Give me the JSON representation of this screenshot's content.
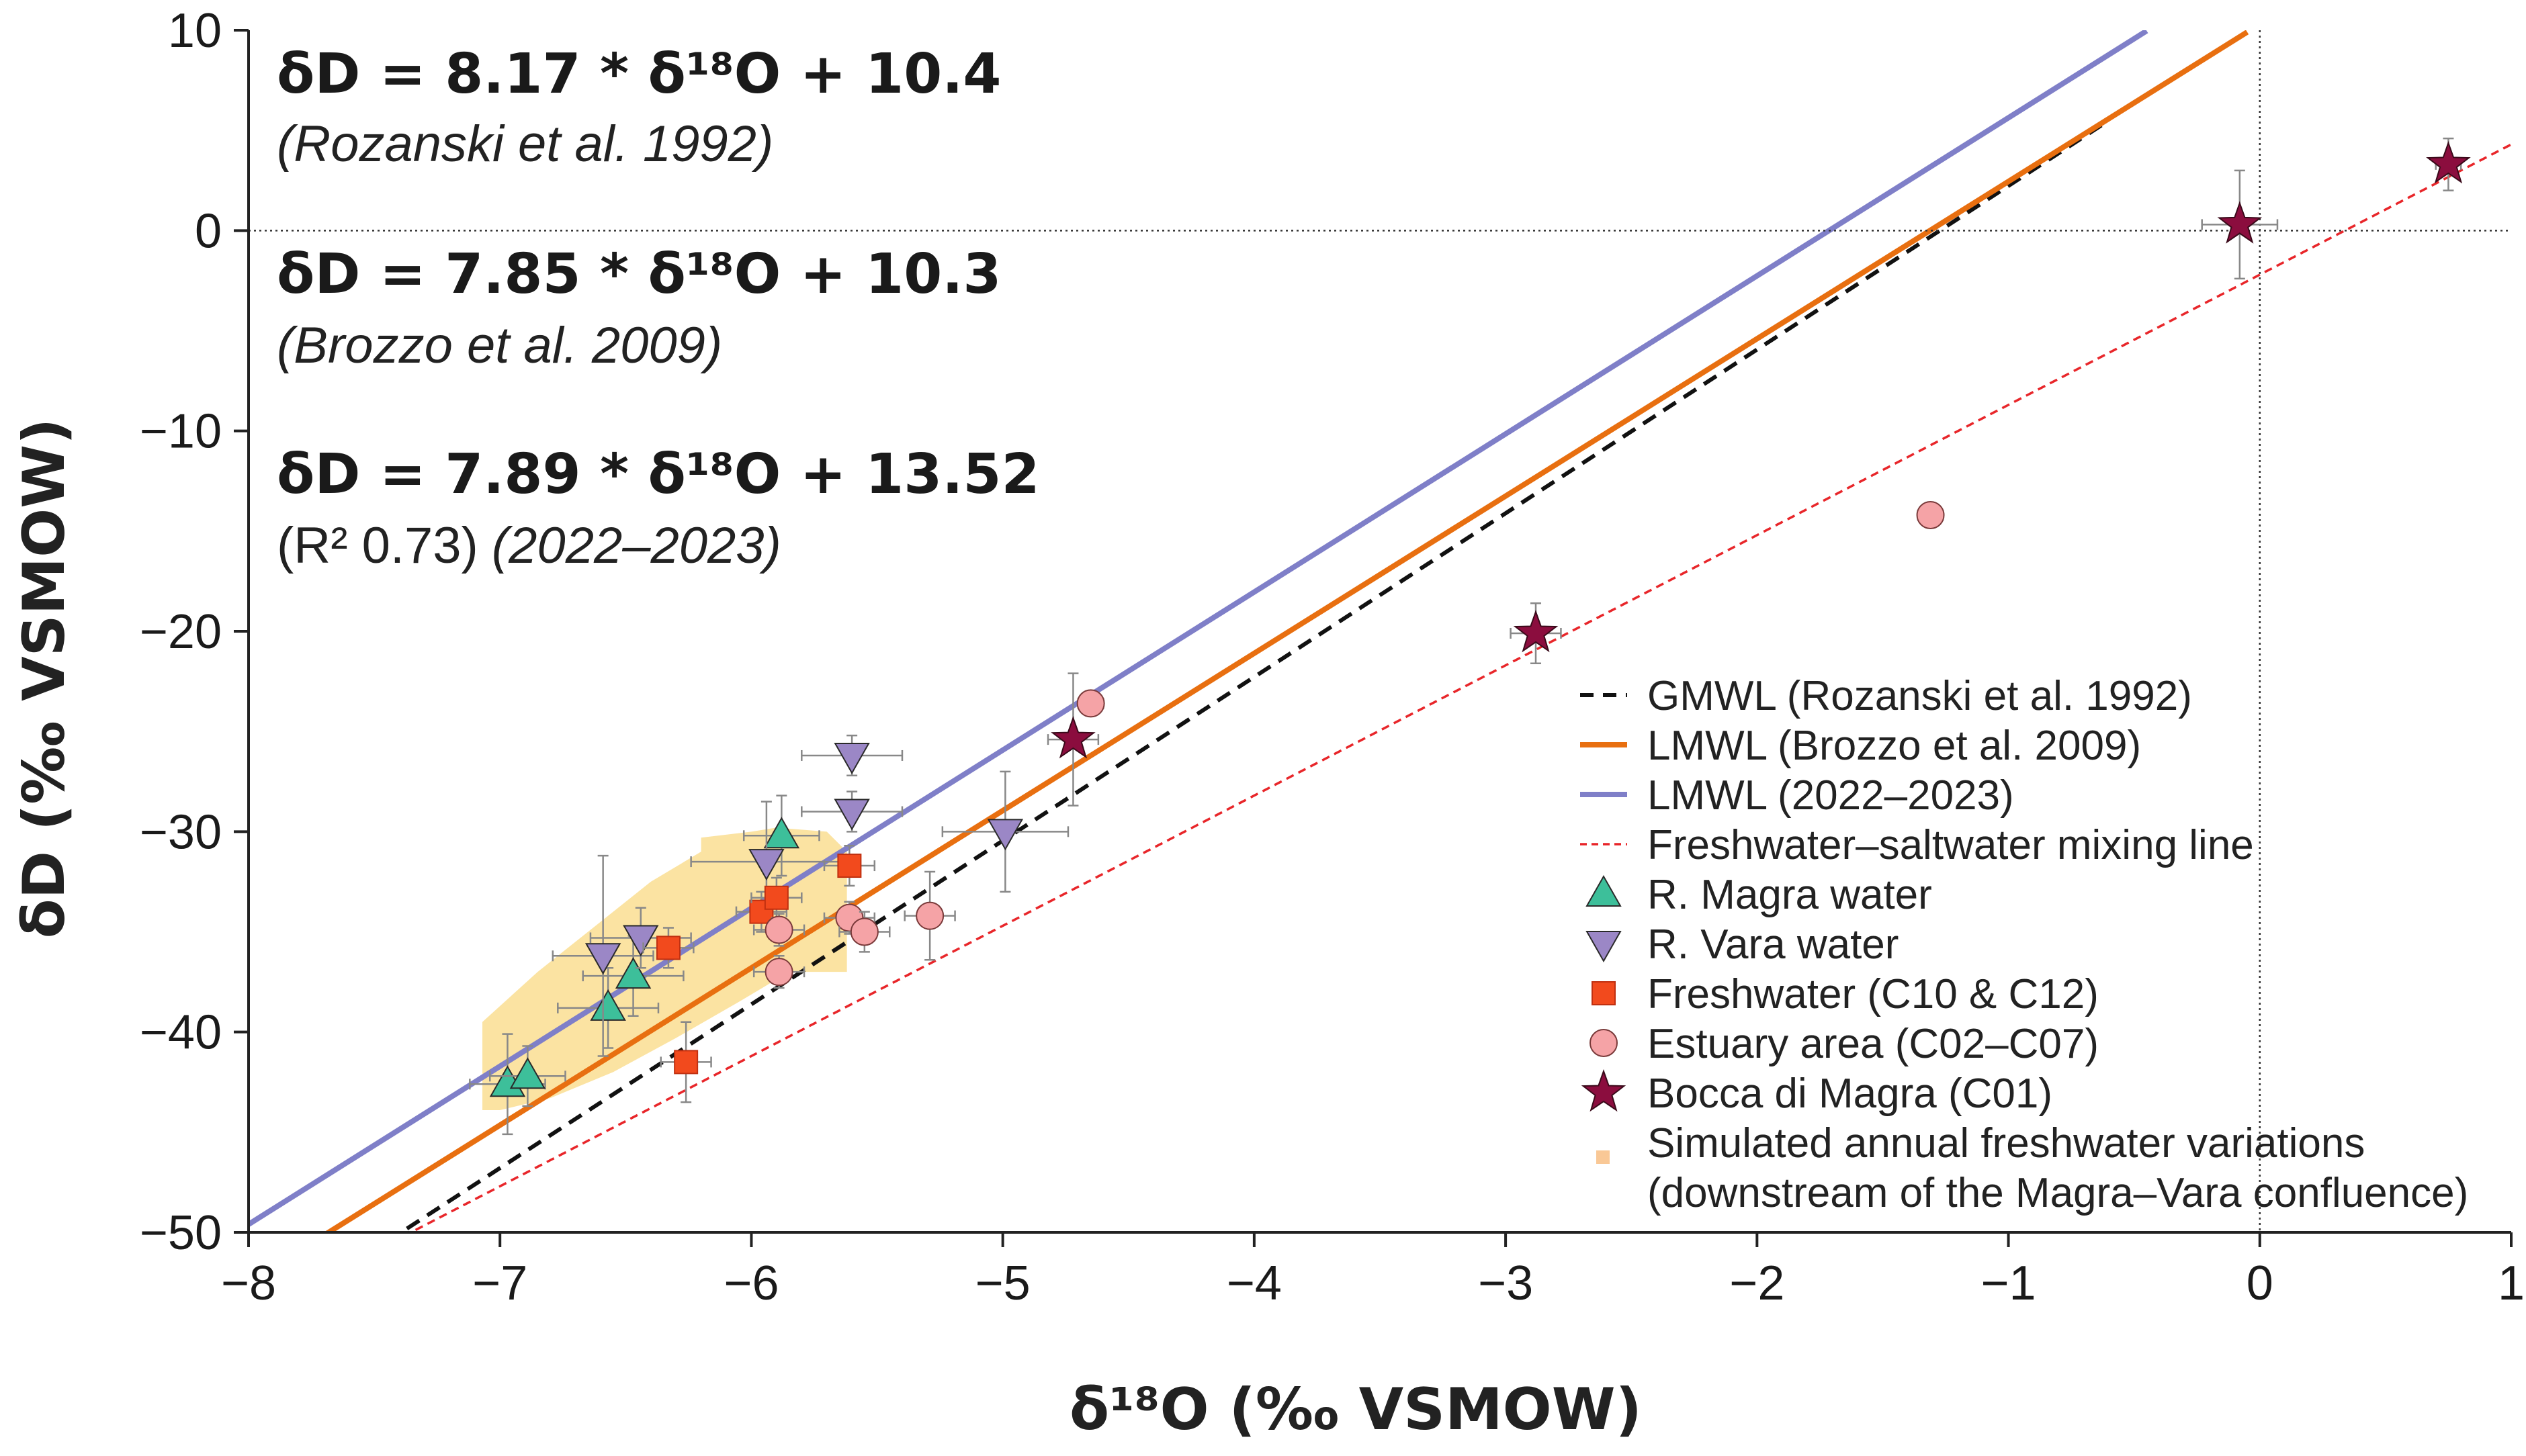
{
  "chart_data": {
    "type": "scatter",
    "xlabel": "δ¹⁸O (‰ VSMOW)",
    "ylabel": "δD (‰ VSMOW)",
    "xlim": [
      -8,
      1
    ],
    "ylim": [
      -50,
      10
    ],
    "x_ticks": [
      -8,
      -7,
      -6,
      -5,
      -4,
      -3,
      -2,
      -1,
      0,
      1
    ],
    "y_ticks": [
      10,
      0,
      -10,
      -20,
      -30,
      -40,
      -50
    ],
    "x_tick_labels": [
      "−8",
      "−7",
      "−6",
      "−5",
      "−4",
      "−3",
      "−2",
      "−1",
      "0",
      "1"
    ],
    "y_tick_labels": [
      "10",
      "0",
      "−10",
      "−20",
      "−30",
      "−40",
      "−50"
    ],
    "annotations": {
      "eq1": "δD = 8.17 * δ¹⁸O + 10.4",
      "cite1": "(Rozanski et al. 1992)",
      "eq2": "δD = 7.85 * δ¹⁸O + 10.3",
      "cite2": "(Brozzo et al. 2009)",
      "eq3": "δD = 7.89 * δ¹⁸O + 13.52",
      "cite3_r2": "(R² 0.73)",
      "cite3_period": "(2022–2023)"
    },
    "reference_lines": [
      {
        "name": "GMWL (Rozanski et al. 1992)",
        "slope": 8.17,
        "intercept": 10.4,
        "color": "#111111",
        "style": "dashed",
        "x_range": [
          -7.37,
          -0.62
        ]
      },
      {
        "name": "LMWL (Brozzo et al. 2009)",
        "slope": 7.85,
        "intercept": 10.3,
        "color": "#e86f10",
        "style": "solid",
        "x_range": [
          -7.7,
          -0.05
        ]
      },
      {
        "name": "LMWL (2022–2023)",
        "slope": 7.89,
        "intercept": 13.52,
        "color": "#7f7fc8",
        "style": "solid",
        "x_range": [
          -8.0,
          -0.45
        ]
      },
      {
        "name": "Freshwater–saltwater mixing line",
        "slope": 6.5,
        "intercept": -2.2,
        "color": "#e8262a",
        "style": "dotted",
        "x_range": [
          -8.0,
          1.0
        ]
      }
    ],
    "series": [
      {
        "name": "R. Magra water",
        "marker": "triangle-up",
        "color": "#3dbf9a",
        "points": [
          {
            "x": -6.97,
            "y": -42.6,
            "xerr": 0.15,
            "yerr": 2.5
          },
          {
            "x": -6.89,
            "y": -42.2,
            "xerr": 0.15,
            "yerr": 1.5
          },
          {
            "x": -6.57,
            "y": -38.8,
            "xerr": 0.2,
            "yerr": 2.0
          },
          {
            "x": -6.47,
            "y": -37.2,
            "xerr": 0.2,
            "yerr": 2.0
          },
          {
            "x": -5.88,
            "y": -30.2,
            "xerr": 0.15,
            "yerr": 2.0
          }
        ]
      },
      {
        "name": "R. Vara water",
        "marker": "triangle-down",
        "color": "#9b87c6",
        "points": [
          {
            "x": -6.59,
            "y": -36.2,
            "xerr": 0.2,
            "yerr": 5.0
          },
          {
            "x": -6.44,
            "y": -35.3,
            "xerr": 0.2,
            "yerr": 1.5
          },
          {
            "x": -5.94,
            "y": -31.5,
            "xerr": 0.3,
            "yerr": 3.0
          },
          {
            "x": -5.6,
            "y": -26.2,
            "xerr": 0.2,
            "yerr": 1.0
          },
          {
            "x": -5.6,
            "y": -29.0,
            "xerr": 0.2,
            "yerr": 1.0
          },
          {
            "x": -4.99,
            "y": -30.0,
            "xerr": 0.25,
            "yerr": 3.0
          }
        ]
      },
      {
        "name": "Freshwater (C10 & C12)",
        "marker": "square",
        "color": "#f24a1d",
        "points": [
          {
            "x": -6.33,
            "y": -35.8,
            "xerr": 0.1,
            "yerr": 1.0
          },
          {
            "x": -5.96,
            "y": -34.0,
            "xerr": 0.1,
            "yerr": 1.0
          },
          {
            "x": -5.9,
            "y": -33.3,
            "xerr": 0.1,
            "yerr": 1.0
          },
          {
            "x": -5.61,
            "y": -31.7,
            "xerr": 0.1,
            "yerr": 1.0
          },
          {
            "x": -6.26,
            "y": -41.5,
            "xerr": 0.1,
            "yerr": 2.0
          }
        ]
      },
      {
        "name": "Estuary area (C02–C07)",
        "marker": "circle",
        "color": "#f5a3a6",
        "points": [
          {
            "x": -5.89,
            "y": -34.9,
            "xerr": 0.1,
            "yerr": 0.8
          },
          {
            "x": -5.89,
            "y": -37.0,
            "xerr": 0.1,
            "yerr": 0.8
          },
          {
            "x": -5.61,
            "y": -34.3,
            "xerr": 0.1,
            "yerr": 0.8
          },
          {
            "x": -5.55,
            "y": -35.0,
            "xerr": 0.1,
            "yerr": 1.0
          },
          {
            "x": -5.29,
            "y": -34.2,
            "xerr": 0.1,
            "yerr": 2.2
          },
          {
            "x": -4.65,
            "y": -23.6,
            "xerr": 0.05,
            "yerr": 0.5
          },
          {
            "x": -1.31,
            "y": -14.2,
            "xerr": 0.05,
            "yerr": 0.5
          }
        ]
      },
      {
        "name": "Bocca di Magra (C01)",
        "marker": "star",
        "color": "#8b0d3e",
        "points": [
          {
            "x": -4.72,
            "y": -25.4,
            "xerr": 0.1,
            "yerr": 3.3
          },
          {
            "x": -2.88,
            "y": -20.1,
            "xerr": 0.1,
            "yerr": 1.5
          },
          {
            "x": -0.08,
            "y": 0.3,
            "xerr": 0.15,
            "yerr": 2.7
          },
          {
            "x": 0.75,
            "y": 3.3,
            "xerr": 0.05,
            "yerr": 1.3
          }
        ]
      }
    ],
    "simulated_region": {
      "name": "Simulated annual freshwater variations (downstream of the Magra–Vara confluence)",
      "color": "#fbe3a2",
      "outline": [
        [
          -7.07,
          -43.9
        ],
        [
          -7.07,
          -39.5
        ],
        [
          -6.85,
          -37.0
        ],
        [
          -6.6,
          -34.5
        ],
        [
          -6.4,
          -32.5
        ],
        [
          -6.2,
          -31.0
        ],
        [
          -6.2,
          -30.3
        ],
        [
          -6.0,
          -30.0
        ],
        [
          -5.9,
          -29.8
        ],
        [
          -5.7,
          -30.0
        ],
        [
          -5.62,
          -31.0
        ],
        [
          -5.62,
          -37.0
        ],
        [
          -5.85,
          -37.0
        ],
        [
          -6.05,
          -38.5
        ],
        [
          -6.3,
          -40.3
        ],
        [
          -6.55,
          -42.0
        ],
        [
          -6.8,
          -43.3
        ],
        [
          -7.0,
          -43.9
        ]
      ]
    },
    "legend": {
      "placement": "bottom-right",
      "entries": [
        "GMWL (Rozanski et al. 1992)",
        "LMWL (Brozzo et al. 2009)",
        "LMWL (2022–2023)",
        "Freshwater–saltwater mixing line",
        "R. Magra water",
        "R. Vara water",
        "Freshwater (C10 & C12)",
        "Estuary area (C02–C07)",
        "Bocca di Magra (C01)",
        "Simulated annual freshwater variations",
        "(downstream of the Magra–Vara confluence)"
      ]
    }
  }
}
